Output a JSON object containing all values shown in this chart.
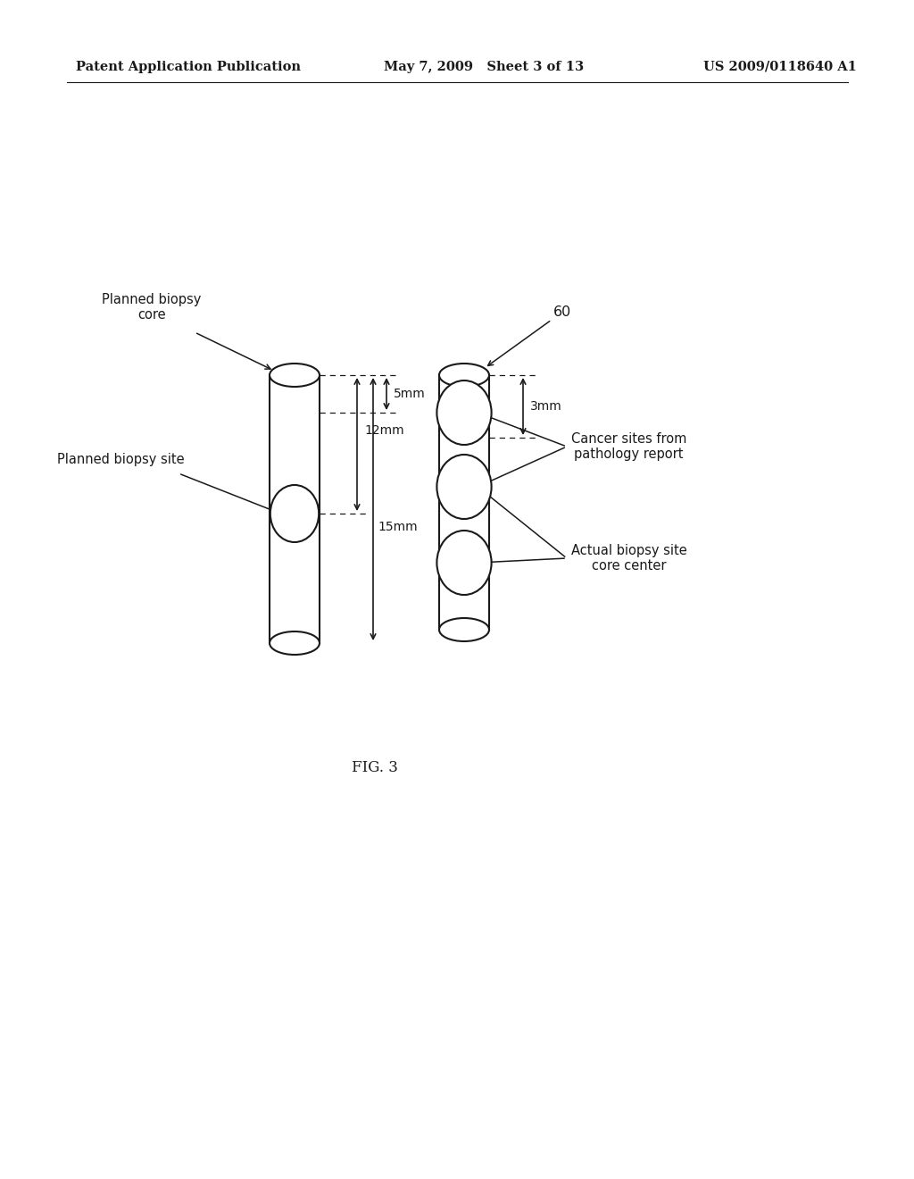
{
  "background_color": "#ffffff",
  "header_left": "Patent Application Publication",
  "header_mid": "May 7, 2009   Sheet 3 of 13",
  "header_right": "US 2009/0118640 A1",
  "fig_label": "FIG. 3",
  "label_planned_biopsy_core": "Planned biopsy\ncore",
  "label_planned_biopsy_site": "Planned biopsy site",
  "label_60": "60",
  "label_3mm": "3mm",
  "label_5mm": "5mm",
  "label_12mm": "12mm",
  "label_15mm": "15mm",
  "label_cancer_sites": "Cancer sites from\npathology report",
  "label_actual_biopsy": "Actual biopsy site\ncore center",
  "line_color": "#1a1a1a",
  "header_fontsize": 10.5,
  "label_fontsize": 10.5,
  "dim_fontsize": 10
}
